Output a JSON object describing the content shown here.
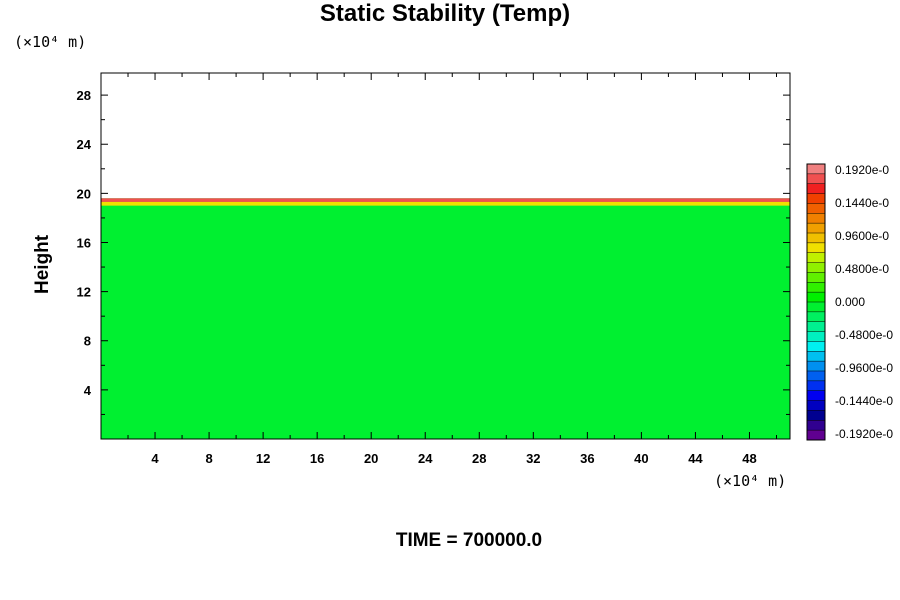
{
  "chart_data": {
    "type": "heatmap",
    "title": "Static Stability (Temp)",
    "ylabel": "Height",
    "xlabel": "",
    "x_unit": "(×10⁴ m)",
    "y_unit": "(×10⁴ m)",
    "xlim": [
      0,
      51
    ],
    "ylim": [
      0,
      29.8
    ],
    "x_ticks": [
      4,
      8,
      12,
      16,
      20,
      24,
      28,
      32,
      36,
      40,
      44,
      48
    ],
    "y_ticks": [
      4,
      8,
      12,
      16,
      20,
      24,
      28
    ],
    "field": {
      "domain_top": 19.6,
      "background_value": 0.0,
      "top_band_values": [
        {
          "y_from": 19.3,
          "y_to": 19.6,
          "value": 0.17
        },
        {
          "y_from": 19.0,
          "y_to": 19.3,
          "value": 0.08
        }
      ]
    },
    "colorbar": {
      "labels": [
        "0.1920e-0",
        "0.1440e-0",
        "0.9600e-0",
        "0.4800e-0",
        "0.000",
        "-0.4800e-0",
        "-0.9600e-0",
        "-0.1440e-0",
        "-0.1920e-0"
      ],
      "min": -0.192,
      "max": 0.192,
      "colors_top_to_bottom": [
        "#f08080",
        "#f05050",
        "#f02020",
        "#f04000",
        "#f06000",
        "#f08000",
        "#f0a000",
        "#f0c000",
        "#f0e000",
        "#c0f000",
        "#90f000",
        "#60f000",
        "#30f000",
        "#00f000",
        "#00f030",
        "#00f060",
        "#00f090",
        "#00f0c0",
        "#00f0f0",
        "#00c0f0",
        "#0090f0",
        "#0060f0",
        "#0030f0",
        "#0000f0",
        "#0000c0",
        "#000090",
        "#300090",
        "#600090"
      ]
    }
  },
  "footer": "TIME = 700000.0"
}
